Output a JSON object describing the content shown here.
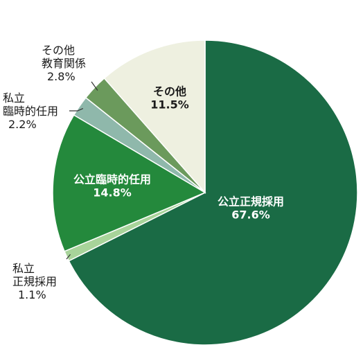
{
  "chart_data": {
    "type": "pie",
    "title": "",
    "start_angle_deg": 0,
    "direction": "clockwise",
    "slices": [
      {
        "lines": [
          "公立正規採用"
        ],
        "value": 67.6,
        "value_label": "67.6%",
        "color": "#1a6b45"
      },
      {
        "lines": [
          "私立",
          "正規採用"
        ],
        "value": 1.1,
        "value_label": "1.1%",
        "color": "#a8d49a"
      },
      {
        "lines": [
          "公立臨時的任用"
        ],
        "value": 14.8,
        "value_label": "14.8%",
        "color": "#24893c"
      },
      {
        "lines": [
          "私立",
          "臨時的任用"
        ],
        "value": 2.2,
        "value_label": "2.2%",
        "color": "#8fb8ab"
      },
      {
        "lines": [
          "その他",
          "教育関係"
        ],
        "value": 2.8,
        "value_label": "2.8%",
        "color": "#6b9a5c"
      },
      {
        "lines": [
          "その他"
        ],
        "value": 11.5,
        "value_label": "11.5%",
        "color": "#eef0e0"
      }
    ]
  }
}
